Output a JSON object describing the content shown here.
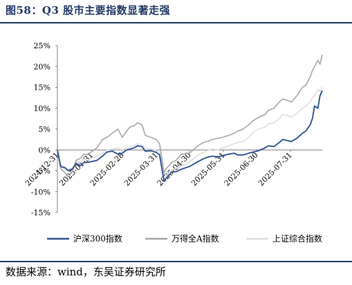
{
  "figure": {
    "title": "图58：Q3 股市主要指数显著走强",
    "source": "数据来源：wind，东吴证券研究所"
  },
  "colors": {
    "title": "#1f3864",
    "series": [
      "#2f5490",
      "#a6a6a6",
      "#dedede"
    ],
    "axis": "#7f7f7f"
  },
  "chart_data": {
    "type": "line",
    "title": "",
    "xlabel": "",
    "ylabel": "",
    "ylim": [
      -0.15,
      0.25
    ],
    "yticks": [
      "25%",
      "20%",
      "15%",
      "10%",
      "5%",
      "0%",
      "-5%",
      "-10%",
      "-15%"
    ],
    "yticks_values": [
      0.25,
      0.2,
      0.15,
      0.1,
      0.05,
      0.0,
      -0.05,
      -0.1,
      -0.15
    ],
    "xlim": [
      "2024-12-31",
      "2025-08-29"
    ],
    "xticks": [
      "2024-12-31",
      "2025-01-31",
      "2025-02-28",
      "2025-03-31",
      "2025-04-30",
      "2025-05-31",
      "2025-06-30",
      "2025-07-31"
    ],
    "grid": false,
    "legend_position": "bottom",
    "series": [
      {
        "name": "沪深300指数",
        "x": [
          "2024-12-31",
          "2025-01-03",
          "2025-01-07",
          "2025-01-10",
          "2025-01-14",
          "2025-01-17",
          "2025-01-21",
          "2025-01-24",
          "2025-01-27",
          "2025-02-05",
          "2025-02-10",
          "2025-02-14",
          "2025-02-19",
          "2025-02-24",
          "2025-02-28",
          "2025-03-04",
          "2025-03-07",
          "2025-03-11",
          "2025-03-14",
          "2025-03-18",
          "2025-03-21",
          "2025-03-26",
          "2025-03-31",
          "2025-04-03",
          "2025-04-07",
          "2025-04-09",
          "2025-04-14",
          "2025-04-18",
          "2025-04-23",
          "2025-04-30",
          "2025-05-08",
          "2025-05-13",
          "2025-05-16",
          "2025-05-21",
          "2025-05-26",
          "2025-05-30",
          "2025-06-05",
          "2025-06-10",
          "2025-06-13",
          "2025-06-18",
          "2025-06-23",
          "2025-06-27",
          "2025-07-02",
          "2025-07-08",
          "2025-07-11",
          "2025-07-16",
          "2025-07-21",
          "2025-07-24",
          "2025-07-29",
          "2025-08-01",
          "2025-08-06",
          "2025-08-11",
          "2025-08-14",
          "2025-08-18",
          "2025-08-20",
          "2025-08-22",
          "2025-08-25",
          "2025-08-27",
          "2025-08-29"
        ],
        "values": [
          0.0,
          -0.04,
          -0.043,
          -0.05,
          -0.045,
          -0.032,
          -0.038,
          -0.03,
          -0.03,
          -0.025,
          -0.015,
          -0.005,
          -0.003,
          -0.01,
          -0.008,
          0.0,
          0.002,
          0.005,
          0.01,
          0.008,
          -0.003,
          -0.002,
          -0.006,
          -0.012,
          -0.075,
          -0.068,
          -0.053,
          -0.052,
          -0.046,
          -0.04,
          -0.028,
          -0.021,
          -0.018,
          -0.015,
          -0.017,
          -0.014,
          -0.01,
          -0.008,
          -0.012,
          -0.012,
          -0.008,
          -0.005,
          -0.002,
          0.005,
          0.01,
          0.008,
          0.018,
          0.025,
          0.022,
          0.02,
          0.028,
          0.04,
          0.045,
          0.06,
          0.075,
          0.105,
          0.1,
          0.13,
          0.142
        ]
      },
      {
        "name": "万得全A指数",
        "x": [
          "2024-12-31",
          "2025-01-03",
          "2025-01-07",
          "2025-01-10",
          "2025-01-14",
          "2025-01-17",
          "2025-01-21",
          "2025-01-24",
          "2025-01-27",
          "2025-02-05",
          "2025-02-10",
          "2025-02-14",
          "2025-02-19",
          "2025-02-24",
          "2025-02-28",
          "2025-03-04",
          "2025-03-07",
          "2025-03-11",
          "2025-03-14",
          "2025-03-18",
          "2025-03-21",
          "2025-03-26",
          "2025-03-31",
          "2025-04-03",
          "2025-04-07",
          "2025-04-09",
          "2025-04-14",
          "2025-04-18",
          "2025-04-23",
          "2025-04-30",
          "2025-05-08",
          "2025-05-13",
          "2025-05-16",
          "2025-05-21",
          "2025-05-26",
          "2025-05-30",
          "2025-06-05",
          "2025-06-10",
          "2025-06-13",
          "2025-06-18",
          "2025-06-23",
          "2025-06-27",
          "2025-07-02",
          "2025-07-08",
          "2025-07-11",
          "2025-07-16",
          "2025-07-21",
          "2025-07-24",
          "2025-07-29",
          "2025-08-01",
          "2025-08-06",
          "2025-08-11",
          "2025-08-14",
          "2025-08-18",
          "2025-08-20",
          "2025-08-22",
          "2025-08-25",
          "2025-08-27",
          "2025-08-29"
        ],
        "values": [
          0.0,
          -0.045,
          -0.055,
          -0.065,
          -0.05,
          -0.025,
          -0.02,
          -0.01,
          -0.012,
          0.005,
          0.025,
          0.03,
          0.04,
          0.05,
          0.03,
          0.045,
          0.055,
          0.058,
          0.065,
          0.06,
          0.035,
          0.03,
          0.025,
          0.015,
          -0.055,
          -0.045,
          -0.03,
          -0.025,
          -0.01,
          -0.008,
          0.01,
          0.018,
          0.02,
          0.025,
          0.028,
          0.03,
          0.035,
          0.04,
          0.045,
          0.05,
          0.06,
          0.07,
          0.078,
          0.085,
          0.095,
          0.1,
          0.115,
          0.122,
          0.118,
          0.115,
          0.13,
          0.15,
          0.155,
          0.175,
          0.19,
          0.2,
          0.215,
          0.205,
          0.228
        ]
      },
      {
        "name": "上证综合指数",
        "x": [
          "2024-12-31",
          "2025-01-03",
          "2025-01-07",
          "2025-01-10",
          "2025-01-14",
          "2025-01-17",
          "2025-01-21",
          "2025-01-24",
          "2025-01-27",
          "2025-02-05",
          "2025-02-10",
          "2025-02-14",
          "2025-02-19",
          "2025-02-24",
          "2025-02-28",
          "2025-03-04",
          "2025-03-07",
          "2025-03-11",
          "2025-03-14",
          "2025-03-18",
          "2025-03-21",
          "2025-03-26",
          "2025-03-31",
          "2025-04-03",
          "2025-04-07",
          "2025-04-09",
          "2025-04-14",
          "2025-04-18",
          "2025-04-23",
          "2025-04-30",
          "2025-05-08",
          "2025-05-13",
          "2025-05-16",
          "2025-05-21",
          "2025-05-26",
          "2025-05-30",
          "2025-06-05",
          "2025-06-10",
          "2025-06-13",
          "2025-06-18",
          "2025-06-23",
          "2025-06-27",
          "2025-07-02",
          "2025-07-08",
          "2025-07-11",
          "2025-07-16",
          "2025-07-21",
          "2025-07-24",
          "2025-07-29",
          "2025-08-01",
          "2025-08-06",
          "2025-08-11",
          "2025-08-14",
          "2025-08-18",
          "2025-08-20",
          "2025-08-22",
          "2025-08-25",
          "2025-08-27",
          "2025-08-29"
        ],
        "values": [
          0.0,
          -0.035,
          -0.04,
          -0.048,
          -0.04,
          -0.028,
          -0.03,
          -0.022,
          -0.024,
          -0.015,
          -0.008,
          0.0,
          0.002,
          0.005,
          0.0,
          0.005,
          0.008,
          0.01,
          0.015,
          0.012,
          0.005,
          0.002,
          0.0,
          -0.005,
          -0.07,
          -0.062,
          -0.048,
          -0.044,
          -0.038,
          -0.03,
          -0.012,
          -0.005,
          -0.002,
          0.002,
          0.0,
          0.004,
          0.01,
          0.015,
          0.018,
          0.02,
          0.03,
          0.042,
          0.05,
          0.055,
          0.062,
          0.065,
          0.075,
          0.085,
          0.082,
          0.078,
          0.088,
          0.1,
          0.105,
          0.115,
          0.125,
          0.13,
          0.145,
          0.14,
          0.152
        ]
      }
    ]
  }
}
